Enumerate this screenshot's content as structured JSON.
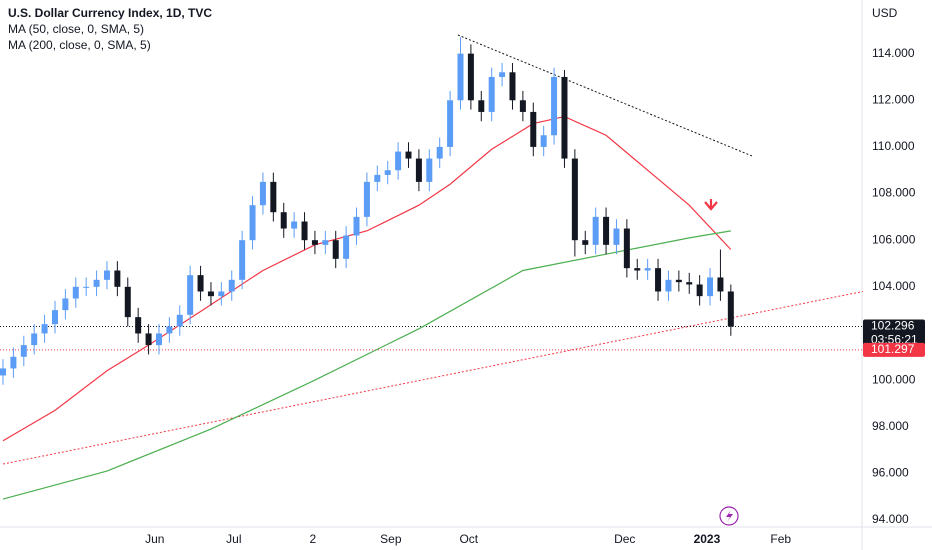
{
  "chart_data": {
    "type": "candlestick",
    "title": "U.S. Dollar Currency Index, 1D, TVC",
    "y_axis_label": "USD",
    "up_color": "#5b9cf6",
    "down_color": "#131722",
    "open": [
      100.2,
      100.5,
      101,
      101.5,
      102,
      102.4,
      103,
      103.5,
      104,
      104,
      104.3,
      104.7,
      104,
      102.7,
      102,
      101.5,
      102,
      102.3,
      102.8,
      104.5,
      103.8,
      103.6,
      103.8,
      104.3,
      106,
      107.5,
      108.5,
      107.2,
      106.5,
      106.8,
      106,
      105.8,
      106,
      105.2,
      106.2,
      107,
      108.5,
      108.8,
      109,
      109.8,
      109.5,
      108.5,
      109.5,
      110,
      112,
      114,
      112,
      111.5,
      113,
      113.2,
      112,
      111.5,
      110,
      110.5,
      113,
      109.5,
      106,
      105.8,
      107,
      105.8,
      106.5,
      104.8,
      104.7,
      104.8,
      103.8,
      104.3,
      104.2,
      104.1,
      103.6,
      104.4,
      103.8
    ],
    "high": [
      100.9,
      101.4,
      101.9,
      102.4,
      102.8,
      103.4,
      103.9,
      104.4,
      104.4,
      104.7,
      105.1,
      105.1,
      104.4,
      103.1,
      102.4,
      102.4,
      102.7,
      103.2,
      104.9,
      104.9,
      104.2,
      104.2,
      104.7,
      106.4,
      107.9,
      108.9,
      108.9,
      107.6,
      107.2,
      107.2,
      106.4,
      106.4,
      106.4,
      106.6,
      107.4,
      108.9,
      109.2,
      109.4,
      110.2,
      110.2,
      109.9,
      109.9,
      110.4,
      112.4,
      114.7,
      114.4,
      112.4,
      113.4,
      113.6,
      113.6,
      112.4,
      111.9,
      110.9,
      113.4,
      113.3,
      109.9,
      106.4,
      107.4,
      107.4,
      106.9,
      106.9,
      105.2,
      105.2,
      105.2,
      104.7,
      104.7,
      104.6,
      104.5,
      104.8,
      105.6,
      104.1
    ],
    "low": [
      99.8,
      100.1,
      100.6,
      101.1,
      101.6,
      102,
      102.6,
      103.1,
      103.6,
      103.6,
      103.9,
      103.6,
      102.3,
      101.6,
      101.1,
      101.1,
      101.6,
      101.9,
      102.4,
      103.4,
      103.2,
      103.2,
      103.4,
      103.9,
      105.6,
      107.1,
      106.8,
      106.1,
      106.1,
      105.6,
      105.4,
      105.4,
      104.8,
      104.8,
      105.8,
      106.6,
      108.1,
      108.4,
      108.6,
      109.1,
      108.1,
      108.1,
      109.1,
      109.6,
      111.6,
      111.6,
      111.1,
      111.1,
      112.6,
      111.6,
      111.1,
      109.6,
      109.6,
      110.1,
      109.1,
      105.3,
      105.4,
      105.4,
      105.4,
      105.4,
      104.4,
      104.3,
      104.3,
      103.4,
      103.4,
      103.8,
      103.7,
      103.2,
      103.2,
      103.4,
      101.9
    ],
    "close": [
      100.5,
      101,
      101.5,
      102,
      102.4,
      103,
      103.5,
      104,
      104,
      104.3,
      104.7,
      104,
      102.7,
      102,
      101.5,
      102,
      102.3,
      102.8,
      104.5,
      103.8,
      103.6,
      103.8,
      104.3,
      106,
      107.5,
      108.5,
      107.2,
      106.5,
      106.8,
      106,
      105.8,
      106,
      105.2,
      106.2,
      107,
      108.5,
      108.8,
      109,
      109.8,
      109.5,
      108.5,
      109.5,
      110,
      112,
      114,
      112,
      111.5,
      113,
      113.2,
      112,
      111.5,
      110,
      110.5,
      113,
      109.5,
      106,
      105.8,
      107,
      105.8,
      106.5,
      104.8,
      104.7,
      104.8,
      103.8,
      104.3,
      104.2,
      104.1,
      103.6,
      104.4,
      103.8,
      102.296
    ],
    "lines": [
      {
        "name": "MA (50, close, 0, SMA, 5)",
        "color": "#f23645",
        "x": [
          0,
          5,
          10,
          14,
          19.2,
          25,
          30,
          35,
          40,
          43,
          47,
          51,
          54,
          58,
          62,
          66,
          70
        ],
        "values": [
          97.4,
          98.7,
          100.4,
          101.5,
          103,
          104.7,
          105.8,
          106.4,
          107.5,
          108.4,
          109.9,
          111,
          111.3,
          110.5,
          109,
          107.5,
          105.6
        ]
      },
      {
        "name": "MA (200, close, 0, SMA, 5)",
        "color": "#4caf50",
        "x": [
          0,
          10,
          20,
          30,
          40,
          50,
          58,
          66,
          70
        ],
        "values": [
          94.9,
          96.1,
          97.9,
          100,
          102.2,
          104.7,
          105.4,
          106.1,
          106.4
        ]
      }
    ],
    "trendlines": [
      {
        "color": "#131722",
        "x": [
          43.75,
          72.1
        ],
        "values": [
          114.8,
          109.6
        ]
      },
      {
        "color": "#f23645",
        "x": [
          0,
          82.7
        ],
        "values": [
          96.4,
          103.8
        ]
      }
    ],
    "price_lines": [
      {
        "value": 102.296,
        "color": "#131722",
        "countdown": "03:56:21"
      },
      {
        "value": 101.297,
        "color": "#f23645"
      }
    ],
    "xlim": [
      0,
      83
    ],
    "xticks": [
      {
        "value": 14.6,
        "label": "Jun"
      },
      {
        "value": 22.2,
        "label": "Jul"
      },
      {
        "value": 29.8,
        "label": "2"
      },
      {
        "value": 37.3,
        "label": "Sep"
      },
      {
        "value": 44.8,
        "label": "Oct"
      },
      {
        "value": 59.8,
        "label": "Dec"
      },
      {
        "value": 67.7,
        "label": "2023"
      },
      {
        "value": 74.8,
        "label": "Feb"
      }
    ],
    "ylim": [
      93.7,
      116.3
    ],
    "yticks": [
      {
        "value": 94,
        "label": "94.000"
      },
      {
        "value": 96,
        "label": "96.000"
      },
      {
        "value": 98,
        "label": "98.000"
      },
      {
        "value": 100,
        "label": "100.000"
      },
      {
        "value": 102,
        "label": "102.000"
      },
      {
        "value": 104,
        "label": "104.000"
      },
      {
        "value": 106,
        "label": "106.000"
      },
      {
        "value": 108,
        "label": "108.000"
      },
      {
        "value": 110,
        "label": "110.000"
      },
      {
        "value": 112,
        "label": "112.000"
      },
      {
        "value": 114,
        "label": "114.000"
      }
    ]
  }
}
